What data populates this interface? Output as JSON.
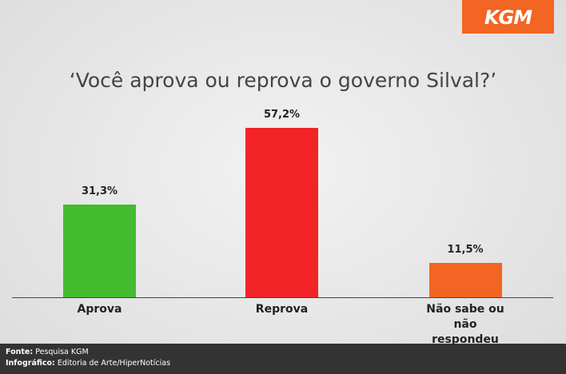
{
  "logo": "KGM",
  "chart_data": {
    "type": "bar",
    "title": "‘Você aprova ou reprova o governo Silval?’",
    "categories": [
      "Aprova",
      "Reprova",
      "Não sabe ou não respondeu"
    ],
    "values": [
      31.3,
      57.2,
      11.5
    ],
    "value_labels": [
      "31,3%",
      "57,2%",
      "11,5%"
    ],
    "colors": [
      "#44bb2e",
      "#f22427",
      "#f26522"
    ]
  },
  "footer": {
    "source_label": "Fonte:",
    "source": "Pesquisa KGM",
    "credit_label": "Infográfico:",
    "credit": "Editoria de Arte/HiperNotícias"
  }
}
